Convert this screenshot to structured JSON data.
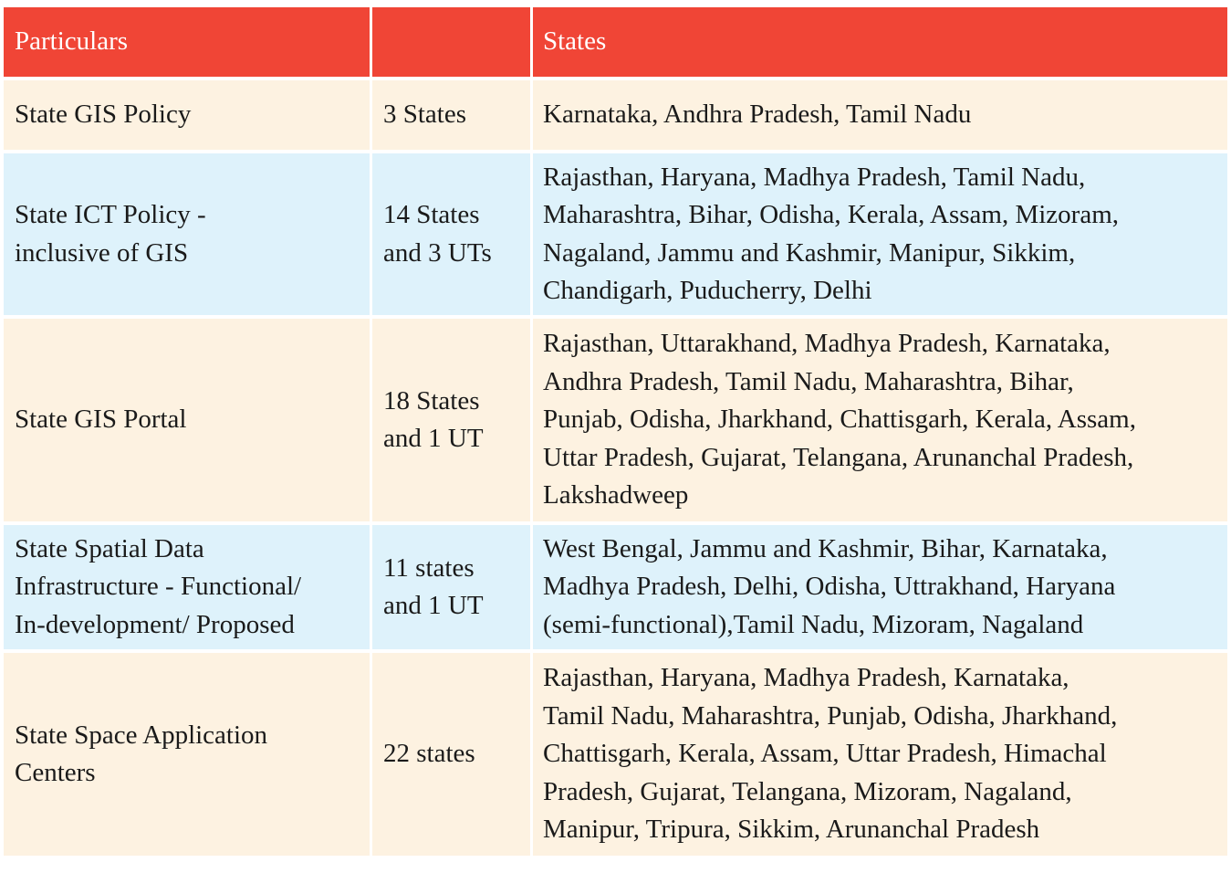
{
  "table": {
    "header": {
      "particulars": "Particulars",
      "count": "",
      "states": "States"
    },
    "rows": [
      {
        "particulars": "State GIS Policy",
        "count": "3 States",
        "states": "Karnataka, Andhra Pradesh, Tamil Nadu"
      },
      {
        "particulars": "State ICT Policy -\ninclusive of GIS",
        "count": "14 States\nand 3 UTs",
        "states": "Rajasthan, Haryana, Madhya Pradesh, Tamil Nadu,\nMaharashtra, Bihar, Odisha, Kerala, Assam, Mizoram,\nNagaland, Jammu and Kashmir, Manipur, Sikkim,\nChandigarh, Puducherry, Delhi"
      },
      {
        "particulars": "State GIS Portal",
        "count": "18 States\nand 1 UT",
        "states": "Rajasthan, Uttarakhand, Madhya Pradesh, Karnataka,\nAndhra Pradesh, Tamil Nadu, Maharashtra, Bihar,\nPunjab, Odisha, Jharkhand, Chattisgarh, Kerala, Assam,\nUttar Pradesh, Gujarat, Telangana, Arunanchal Pradesh,\nLakshadweep"
      },
      {
        "particulars": "State Spatial Data\nInfrastructure - Functional/\nIn-development/ Proposed",
        "count": "11 states\nand 1 UT",
        "states": "West Bengal, Jammu and Kashmir, Bihar, Karnataka,\nMadhya Pradesh, Delhi, Odisha, Uttrakhand, Haryana\n(semi-functional),Tamil Nadu, Mizoram, Nagaland"
      },
      {
        "particulars": "State Space Application\nCenters",
        "count": "22 states",
        "states": "Rajasthan, Haryana, Madhya Pradesh, Karnataka,\nTamil Nadu, Maharashtra, Punjab, Odisha, Jharkhand,\nChattisgarh, Kerala, Assam, Uttar Pradesh, Himachal\nPradesh, Gujarat, Telangana, Mizoram, Nagaland,\nManipur, Tripura, Sikkim, Arunanchal Pradesh"
      }
    ]
  },
  "colors": {
    "header_bg": "#f04536",
    "header_text": "#ffffff",
    "row_cream": "#fdf2e1",
    "row_blue": "#def2fb"
  }
}
